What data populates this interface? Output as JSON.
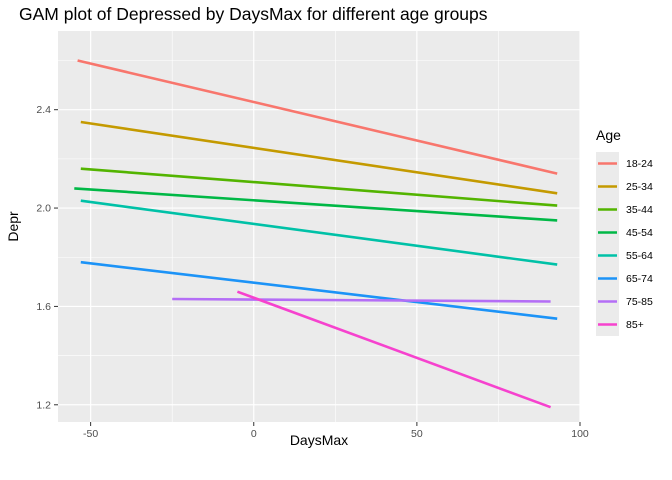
{
  "chart_data": {
    "type": "line",
    "title": "GAM plot of Depressed by DaysMax for different age groups",
    "xlabel": "DaysMax",
    "ylabel": "Depr",
    "xlim": [
      -60,
      100
    ],
    "ylim": [
      1.13,
      2.72
    ],
    "xticks": [
      -50,
      0,
      50,
      100
    ],
    "xtick_labels": [
      "-50",
      "0",
      "50",
      "100"
    ],
    "yticks": [
      1.2,
      1.6,
      2.0,
      2.4
    ],
    "ytick_labels": [
      "1.2",
      "1.6",
      "2.0",
      "2.4"
    ],
    "grid": true,
    "legend_title": "Age",
    "legend_position": "right",
    "series": [
      {
        "name": "18-24",
        "color": "#F8766D",
        "x": [
          -54,
          93
        ],
        "y": [
          2.6,
          2.14
        ]
      },
      {
        "name": "25-34",
        "color": "#C49A00",
        "x": [
          -53,
          93
        ],
        "y": [
          2.35,
          2.06
        ]
      },
      {
        "name": "35-44",
        "color": "#53B400",
        "x": [
          -53,
          93
        ],
        "y": [
          2.16,
          2.01
        ]
      },
      {
        "name": "45-54",
        "color": "#00B846",
        "x": [
          -55,
          93
        ],
        "y": [
          2.08,
          1.95
        ]
      },
      {
        "name": "55-64",
        "color": "#00C1A7",
        "x": [
          -53,
          93
        ],
        "y": [
          2.03,
          1.77
        ]
      },
      {
        "name": "65-74",
        "color": "#1C93F7",
        "x": [
          -53,
          93
        ],
        "y": [
          1.78,
          1.55
        ]
      },
      {
        "name": "75-85",
        "color": "#B46EF6",
        "x": [
          -25,
          91
        ],
        "y": [
          1.63,
          1.62
        ]
      },
      {
        "name": "85+",
        "color": "#F642CE",
        "x": [
          -5,
          91
        ],
        "y": [
          1.66,
          1.19
        ]
      }
    ]
  }
}
